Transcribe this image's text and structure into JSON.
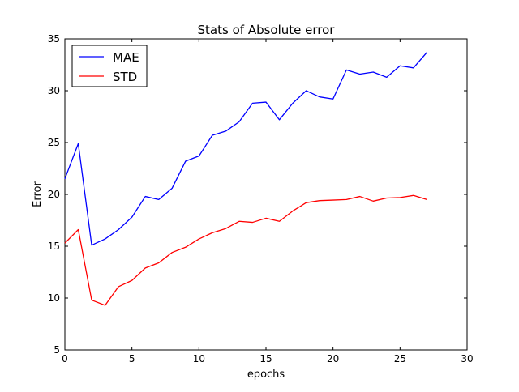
{
  "chart_data": {
    "type": "line",
    "title": "Stats of Absolute error",
    "xlabel": "epochs",
    "ylabel": "Error",
    "xlim": [
      0,
      30
    ],
    "ylim": [
      5,
      35
    ],
    "xticks": [
      0,
      5,
      10,
      15,
      20,
      25,
      30
    ],
    "yticks": [
      5,
      10,
      15,
      20,
      25,
      30,
      35
    ],
    "grid": false,
    "legend_position": "top-left",
    "x": [
      0,
      1,
      2,
      3,
      4,
      5,
      6,
      7,
      8,
      9,
      10,
      11,
      12,
      13,
      14,
      15,
      16,
      17,
      18,
      19,
      20,
      21,
      22,
      23,
      24,
      25,
      26,
      27
    ],
    "series": [
      {
        "name": "MAE",
        "color": "#0000ff",
        "values": [
          21.5,
          24.9,
          15.1,
          15.7,
          16.6,
          17.8,
          19.8,
          19.5,
          20.6,
          23.2,
          23.7,
          25.7,
          26.1,
          27.0,
          28.8,
          28.9,
          27.2,
          28.8,
          30.0,
          29.4,
          29.2,
          32.0,
          31.6,
          31.8,
          31.3,
          32.4,
          32.2,
          33.7
        ]
      },
      {
        "name": "STD",
        "color": "#ff0000",
        "values": [
          15.3,
          16.6,
          9.8,
          9.3,
          11.1,
          11.7,
          12.9,
          13.4,
          14.4,
          14.9,
          15.7,
          16.3,
          16.7,
          17.4,
          17.3,
          17.7,
          17.4,
          18.4,
          19.2,
          19.4,
          19.45,
          19.5,
          19.8,
          19.35,
          19.65,
          19.7,
          19.9,
          19.5
        ]
      }
    ]
  }
}
